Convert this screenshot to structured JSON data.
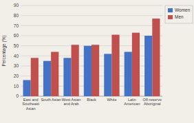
{
  "chart_data": {
    "type": "bar",
    "categories": [
      "East and\nSoutheast\nAsian",
      "South Asian",
      "West Asian\nand Arab",
      "Black",
      "White",
      "Latin\nAmerican",
      "Off-reserve\nAboriginal"
    ],
    "series": [
      {
        "name": "Women",
        "color": "#4472c4",
        "values": [
          16,
          35,
          38,
          50,
          42,
          44,
          60
        ]
      },
      {
        "name": "Men",
        "color": "#c0504d",
        "values": [
          38,
          44,
          51,
          51,
          61,
          63,
          77
        ]
      }
    ],
    "ylabel": "Percentage (%)",
    "ylim": [
      0,
      90
    ],
    "yticks": [
      0,
      10,
      20,
      30,
      40,
      50,
      60,
      70,
      80,
      90
    ],
    "grid": true,
    "legend": "upper right"
  }
}
